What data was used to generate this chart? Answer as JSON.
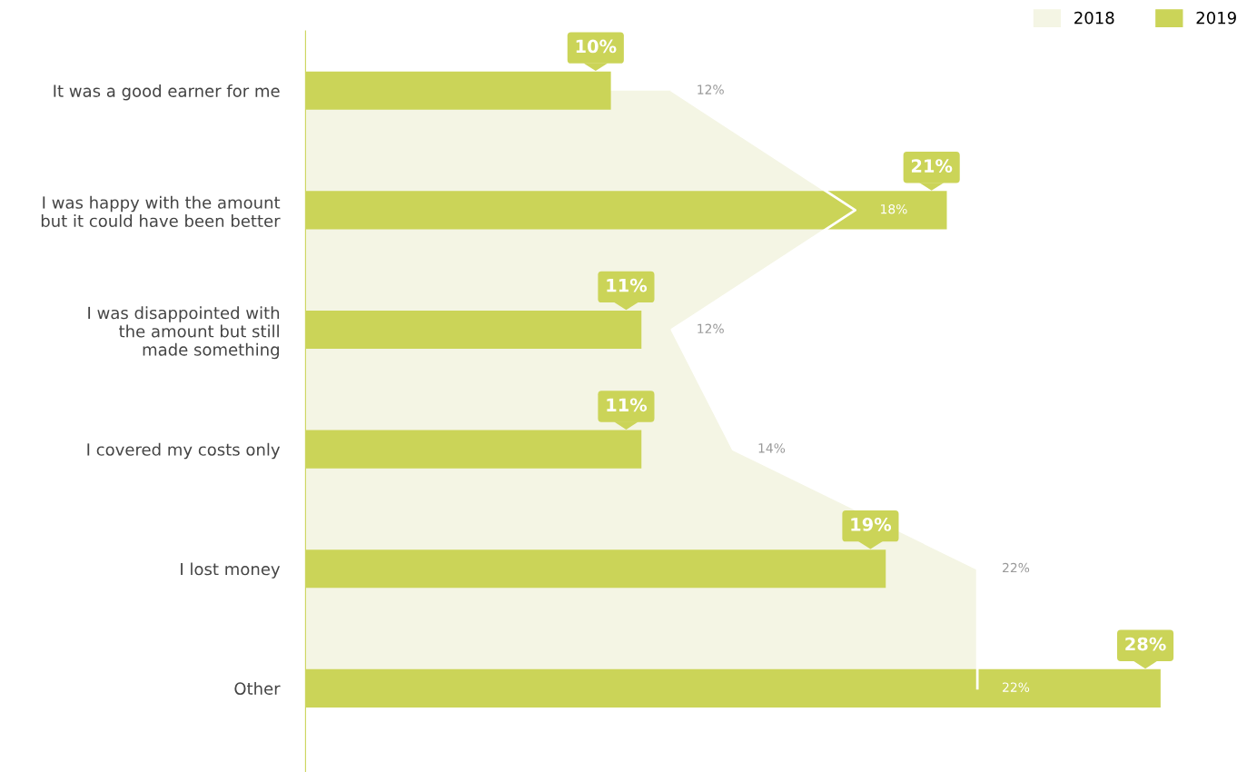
{
  "chart_data": {
    "type": "bar",
    "orientation": "horizontal",
    "legend": "top right",
    "grid": false,
    "categories": [
      "It was a good earner for me",
      "I was happy with the amount\nbut it could have been better",
      "I was disappointed with\nthe amount but still\nmade something",
      "I covered my costs only",
      "I lost money",
      "Other"
    ],
    "series": [
      {
        "name": "2018",
        "type": "area",
        "color": "#f4f5e4",
        "values": [
          12,
          18,
          12,
          14,
          22,
          22
        ],
        "value_labels": [
          "12%",
          "18%",
          "12%",
          "14%",
          "22%",
          "22%"
        ]
      },
      {
        "name": "2019",
        "color": "#cbd458",
        "values": [
          10,
          21,
          11,
          11,
          19,
          28
        ],
        "value_labels": [
          "10%",
          "21%",
          "11%",
          "11%",
          "19%",
          "28%"
        ]
      }
    ]
  }
}
